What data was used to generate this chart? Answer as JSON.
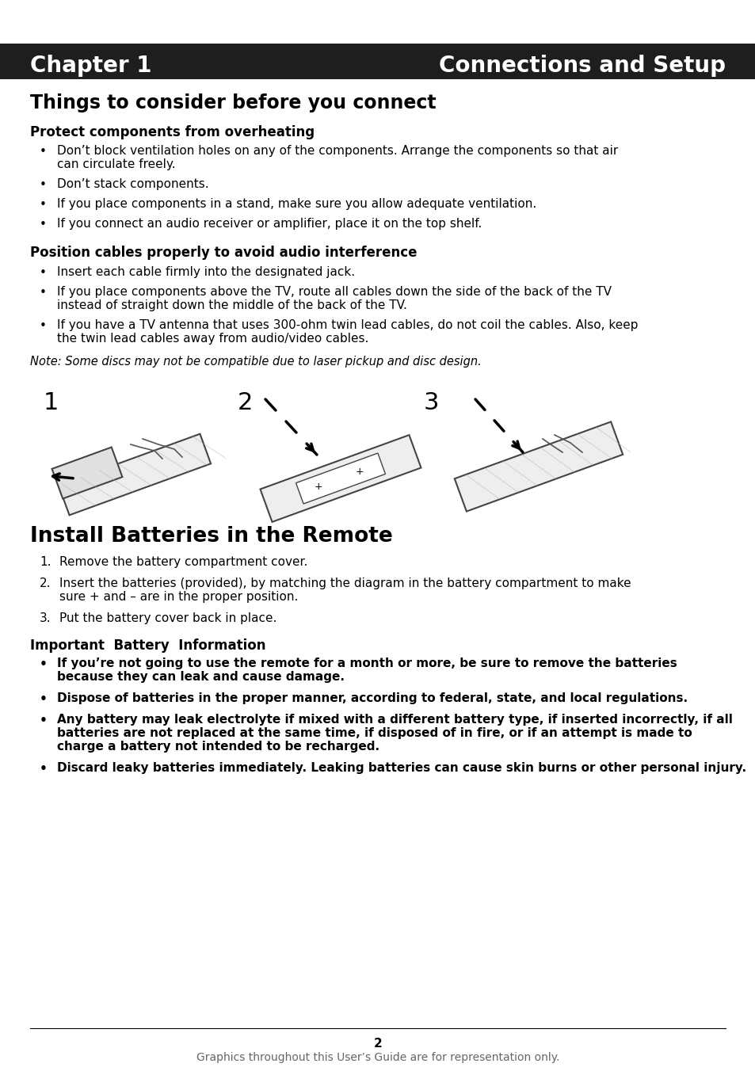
{
  "header_bg": "#1e1e1e",
  "header_text_left": "Chapter 1",
  "header_text_right": "Connections and Setup",
  "header_font_size": 20,
  "section1_title": "Things to consider before you connect",
  "section1_title_size": 17,
  "subsection1_title": "Protect components from overheating",
  "subsection1_size": 12,
  "bullets1": [
    "Don’t block ventilation holes on any of the components. Arrange the components so that air\ncan circulate freely.",
    "Don’t stack components.",
    "If you place components in a stand, make sure you allow adequate ventilation.",
    "If you connect an audio receiver or amplifier, place it on the top shelf."
  ],
  "subsection2_title": "Position cables properly to avoid audio interference",
  "bullets2": [
    "Insert each cable firmly into the designated jack.",
    "If you place components above the TV, route all cables down the side of the back of the TV\ninstead of straight down the middle of the back of the TV.",
    "If you have a TV antenna that uses 300-ohm twin lead cables, do not coil the cables. Also, keep\nthe twin lead cables away from audio/video cables."
  ],
  "note_text": "Note: Some discs may not be compatible due to laser pickup and disc design.",
  "section2_title": "Install Batteries in the Remote",
  "section2_title_size": 19,
  "numbered_items": [
    "Remove the battery compartment cover.",
    "Insert the batteries (provided), by matching the diagram in the battery compartment to make\nsure + and – are in the proper position.",
    "Put the battery cover back in place."
  ],
  "important_title": "Important  Battery  Information",
  "important_bullets": [
    "If you’re not going to use the remote for a month or more, be sure to remove the batteries\nbecause they can leak and cause damage.",
    "Dispose of batteries in the proper manner, according to federal, state, and local regulations.",
    "Any battery may leak electrolyte if mixed with a different battery type, if inserted incorrectly, if all\nbatteries are not replaced at the same time, if disposed of in fire, or if an attempt is made to\ncharge a battery not intended to be recharged.",
    "Discard leaky batteries immediately. Leaking batteries can cause skin burns or other personal injury."
  ],
  "footer_page_num": "2",
  "footer_text": "Graphics throughout this User’s Guide are for representation only.",
  "bg_color": "#ffffff",
  "text_color": "#000000",
  "bullet_font_size": 11,
  "body_font_size": 11
}
